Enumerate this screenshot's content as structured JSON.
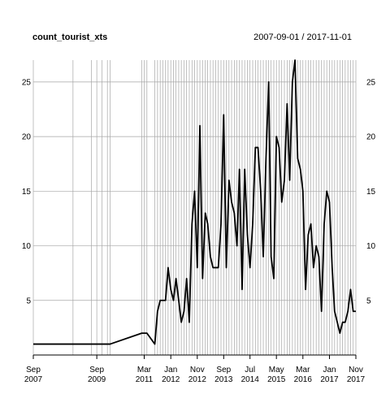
{
  "chart_data": {
    "type": "line",
    "title": "count_tourist_xts",
    "date_range": "2007-09-01 / 2017-11-01",
    "xlabel": "",
    "ylabel": "",
    "ylim": [
      0,
      27
    ],
    "xlim": [
      "2007-09-01",
      "2017-11-01"
    ],
    "y_ticks": [
      5,
      10,
      15,
      20,
      25
    ],
    "grid": true,
    "x_ticks": [
      {
        "date": "2007-09-01",
        "month": "Sep",
        "year": "2007"
      },
      {
        "date": "2009-09-01",
        "month": "Sep",
        "year": "2009"
      },
      {
        "date": "2011-03-01",
        "month": "Mar",
        "year": "2011"
      },
      {
        "date": "2012-01-01",
        "month": "Jan",
        "year": "2012"
      },
      {
        "date": "2012-11-01",
        "month": "Nov",
        "year": "2012"
      },
      {
        "date": "2013-09-01",
        "month": "Sep",
        "year": "2013"
      },
      {
        "date": "2014-07-01",
        "month": "Jul",
        "year": "2014"
      },
      {
        "date": "2015-05-01",
        "month": "May",
        "year": "2015"
      },
      {
        "date": "2016-03-01",
        "month": "Mar",
        "year": "2016"
      },
      {
        "date": "2017-01-01",
        "month": "Jan",
        "year": "2017"
      },
      {
        "date": "2017-11-01",
        "month": "Nov",
        "year": "2017"
      }
    ],
    "series": [
      {
        "color": "#000000",
        "points": [
          [
            "2007-09-01",
            1
          ],
          [
            "2008-12-01",
            1
          ],
          [
            "2009-07-01",
            1
          ],
          [
            "2009-09-01",
            1
          ],
          [
            "2009-11-01",
            1
          ],
          [
            "2010-01-01",
            1
          ],
          [
            "2010-02-01",
            1
          ],
          [
            "2011-02-01",
            2
          ],
          [
            "2011-03-01",
            2
          ],
          [
            "2011-04-01",
            2
          ],
          [
            "2011-07-01",
            1
          ],
          [
            "2011-08-01",
            4
          ],
          [
            "2011-09-01",
            5
          ],
          [
            "2011-10-01",
            5
          ],
          [
            "2011-11-01",
            5
          ],
          [
            "2011-12-01",
            8
          ],
          [
            "2012-01-01",
            6
          ],
          [
            "2012-02-01",
            5
          ],
          [
            "2012-03-01",
            7
          ],
          [
            "2012-04-01",
            5
          ],
          [
            "2012-05-01",
            3
          ],
          [
            "2012-06-01",
            4
          ],
          [
            "2012-07-01",
            7
          ],
          [
            "2012-08-01",
            3
          ],
          [
            "2012-09-01",
            12
          ],
          [
            "2012-10-01",
            15
          ],
          [
            "2012-11-01",
            8
          ],
          [
            "2012-12-01",
            21
          ],
          [
            "2013-01-01",
            7
          ],
          [
            "2013-02-01",
            13
          ],
          [
            "2013-03-01",
            12
          ],
          [
            "2013-04-01",
            9
          ],
          [
            "2013-05-01",
            8
          ],
          [
            "2013-06-01",
            8
          ],
          [
            "2013-07-01",
            8
          ],
          [
            "2013-08-01",
            12
          ],
          [
            "2013-09-01",
            22
          ],
          [
            "2013-10-01",
            8
          ],
          [
            "2013-11-01",
            16
          ],
          [
            "2013-12-01",
            14
          ],
          [
            "2014-01-01",
            13
          ],
          [
            "2014-02-01",
            10
          ],
          [
            "2014-03-01",
            17
          ],
          [
            "2014-04-01",
            6
          ],
          [
            "2014-05-01",
            17
          ],
          [
            "2014-06-01",
            11
          ],
          [
            "2014-07-01",
            8
          ],
          [
            "2014-08-01",
            12
          ],
          [
            "2014-09-01",
            19
          ],
          [
            "2014-10-01",
            19
          ],
          [
            "2014-11-01",
            15
          ],
          [
            "2014-12-01",
            9
          ],
          [
            "2015-01-01",
            18
          ],
          [
            "2015-02-01",
            25
          ],
          [
            "2015-03-01",
            9
          ],
          [
            "2015-04-01",
            7
          ],
          [
            "2015-05-01",
            20
          ],
          [
            "2015-06-01",
            19
          ],
          [
            "2015-07-01",
            14
          ],
          [
            "2015-08-01",
            16
          ],
          [
            "2015-09-01",
            23
          ],
          [
            "2015-10-01",
            16
          ],
          [
            "2015-11-01",
            25
          ],
          [
            "2015-12-01",
            27
          ],
          [
            "2016-01-01",
            18
          ],
          [
            "2016-02-01",
            17
          ],
          [
            "2016-03-01",
            15
          ],
          [
            "2016-04-01",
            6
          ],
          [
            "2016-05-01",
            11
          ],
          [
            "2016-06-01",
            12
          ],
          [
            "2016-07-01",
            8
          ],
          [
            "2016-08-01",
            10
          ],
          [
            "2016-09-01",
            9
          ],
          [
            "2016-10-01",
            4
          ],
          [
            "2016-11-01",
            12
          ],
          [
            "2016-12-01",
            15
          ],
          [
            "2017-01-01",
            14
          ],
          [
            "2017-02-01",
            8
          ],
          [
            "2017-03-01",
            4
          ],
          [
            "2017-04-01",
            3
          ],
          [
            "2017-05-01",
            2
          ],
          [
            "2017-06-01",
            3
          ],
          [
            "2017-07-01",
            3
          ],
          [
            "2017-08-01",
            4
          ],
          [
            "2017-09-01",
            6
          ],
          [
            "2017-10-01",
            4
          ],
          [
            "2017-11-01",
            4
          ]
        ]
      }
    ]
  }
}
